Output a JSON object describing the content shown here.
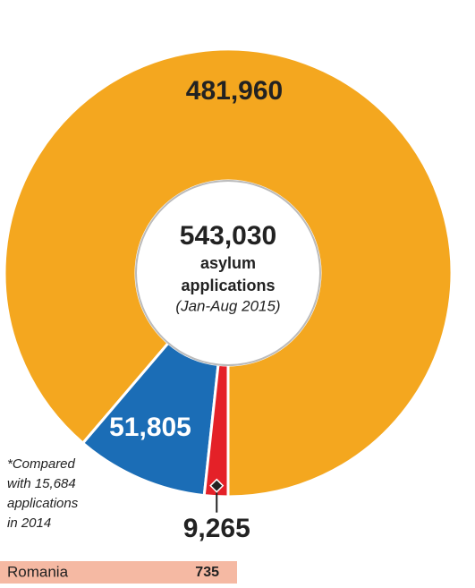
{
  "chart_data": {
    "type": "pie",
    "donut": true,
    "values": [
      481960,
      51805,
      9265
    ],
    "value_labels": [
      "481,960",
      "51,805",
      "9,265"
    ],
    "colors": [
      "#f4a71f",
      "#1b6db6",
      "#e42128"
    ],
    "center_text": [
      "543,030",
      "asylum",
      "applications",
      "(Jan-Aug 2015)"
    ]
  },
  "footnote": [
    "*Compared",
    "with 15,684",
    "applications",
    "in 2014"
  ],
  "table": {
    "rows": [
      [
        "Romania",
        "735"
      ]
    ]
  }
}
